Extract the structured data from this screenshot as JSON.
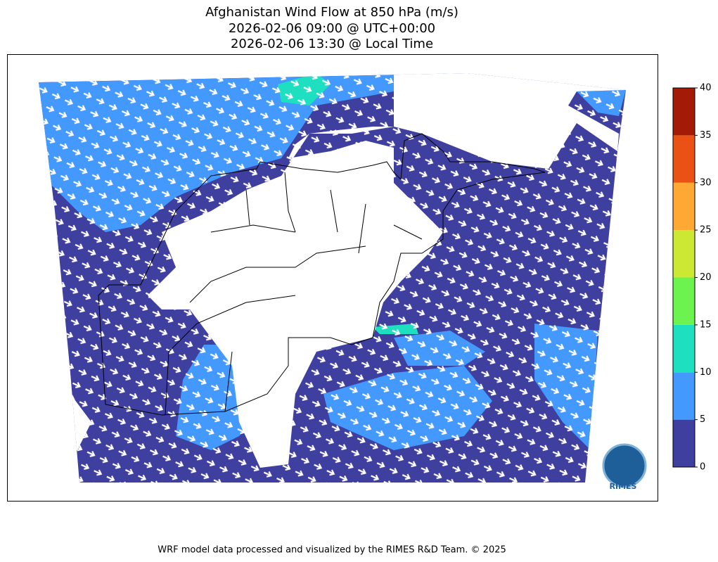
{
  "header": {
    "title_lines": [
      "Afghanistan Wind Flow at 850 hPa (m/s)",
      "2026-02-06 09:00 @ UTC+00:00",
      "2026-02-06 13:30 @ Local Time"
    ]
  },
  "colorbar": {
    "ticks": [
      0,
      5,
      10,
      15,
      20,
      25,
      30,
      35,
      40
    ],
    "colors": [
      "#3f3fa0",
      "#4499ff",
      "#1ee0c0",
      "#6cf34f",
      "#cce832",
      "#ffa833",
      "#ea5114",
      "#a31a06"
    ]
  },
  "logo": {
    "text": "RIMES"
  },
  "footer": {
    "text": "WRF model data processed and visualized by the RIMES R&D Team. © 2025"
  }
}
